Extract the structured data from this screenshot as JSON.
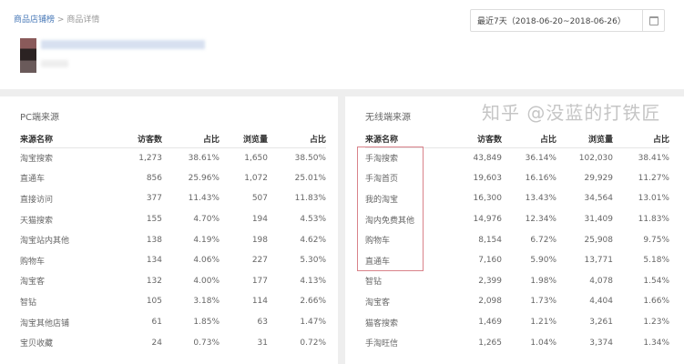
{
  "breadcrumb": {
    "parent": "商品店铺榜",
    "separator": ">",
    "current": "商品详情"
  },
  "date_range": "最近7天（2018-06-20~2018-06-26）",
  "pc": {
    "title": "PC端来源",
    "headers": [
      "来源名称",
      "访客数",
      "占比",
      "浏览量",
      "占比"
    ],
    "rows": [
      [
        "淘宝搜索",
        "1,273",
        "38.61%",
        "1,650",
        "38.50%"
      ],
      [
        "直通车",
        "856",
        "25.96%",
        "1,072",
        "25.01%"
      ],
      [
        "直接访问",
        "377",
        "11.43%",
        "507",
        "11.83%"
      ],
      [
        "天猫搜索",
        "155",
        "4.70%",
        "194",
        "4.53%"
      ],
      [
        "淘宝站内其他",
        "138",
        "4.19%",
        "198",
        "4.62%"
      ],
      [
        "购物车",
        "134",
        "4.06%",
        "227",
        "5.30%"
      ],
      [
        "淘宝客",
        "132",
        "4.00%",
        "177",
        "4.13%"
      ],
      [
        "智钻",
        "105",
        "3.18%",
        "114",
        "2.66%"
      ],
      [
        "淘宝其他店铺",
        "61",
        "1.85%",
        "63",
        "1.47%"
      ],
      [
        "宝贝收藏",
        "24",
        "0.73%",
        "31",
        "0.72%"
      ]
    ]
  },
  "mobile": {
    "title": "无线端来源",
    "headers": [
      "来源名称",
      "访客数",
      "占比",
      "浏览量",
      "占比"
    ],
    "rows": [
      [
        "手淘搜索",
        "43,849",
        "36.14%",
        "102,030",
        "38.41%"
      ],
      [
        "手淘首页",
        "19,603",
        "16.16%",
        "29,929",
        "11.27%"
      ],
      [
        "我的淘宝",
        "16,300",
        "13.43%",
        "34,564",
        "13.01%"
      ],
      [
        "淘内免费其他",
        "14,976",
        "12.34%",
        "31,409",
        "11.83%"
      ],
      [
        "购物车",
        "8,154",
        "6.72%",
        "25,908",
        "9.75%"
      ],
      [
        "直通车",
        "7,160",
        "5.90%",
        "13,771",
        "5.18%"
      ],
      [
        "智钻",
        "2,399",
        "1.98%",
        "4,078",
        "1.54%"
      ],
      [
        "淘宝客",
        "2,098",
        "1.73%",
        "4,404",
        "1.66%"
      ],
      [
        "猫客搜索",
        "1,469",
        "1.21%",
        "3,261",
        "1.23%"
      ],
      [
        "手淘旺信",
        "1,265",
        "1.04%",
        "3,374",
        "1.34%"
      ]
    ]
  },
  "watermark": "知乎 @没蓝的打铁匠",
  "colors": {
    "link": "#4a7ab8",
    "highlight_box": "#d9828a"
  }
}
